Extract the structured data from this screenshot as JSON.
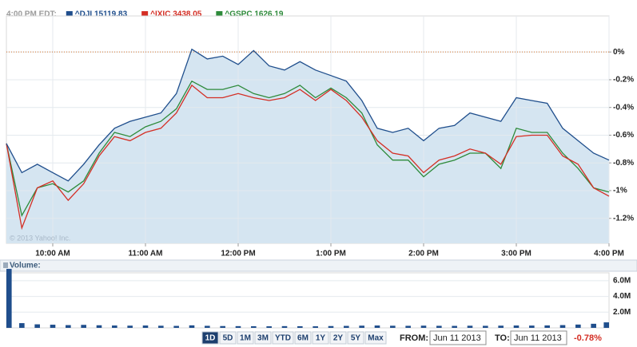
{
  "header": {
    "time_label": "4:00 PM EDT:"
  },
  "chart_data": [
    {
      "type": "line",
      "watermark": "© 2013 Yahoo! Inc.",
      "x": [
        "09:30",
        "09:40",
        "09:50",
        "10:00",
        "10:10",
        "10:20",
        "10:30",
        "10:40",
        "10:50",
        "11:00",
        "11:10",
        "11:20",
        "11:30",
        "11:40",
        "11:50",
        "12:00",
        "12:10",
        "12:20",
        "12:30",
        "12:40",
        "12:50",
        "13:00",
        "13:10",
        "13:20",
        "13:30",
        "13:40",
        "13:50",
        "14:00",
        "14:10",
        "14:20",
        "14:30",
        "14:40",
        "14:50",
        "15:00",
        "15:10",
        "15:20",
        "15:30",
        "15:40",
        "15:50",
        "16:00"
      ],
      "xlim": [
        "09:30",
        "16:00"
      ],
      "xticks": [
        {
          "value": "10:00",
          "label": "10:00 AM"
        },
        {
          "value": "11:00",
          "label": "11:00 AM"
        },
        {
          "value": "12:00",
          "label": "12:00 PM"
        },
        {
          "value": "13:00",
          "label": "1:00 PM"
        },
        {
          "value": "14:00",
          "label": "2:00 PM"
        },
        {
          "value": "15:00",
          "label": "3:00 PM"
        },
        {
          "value": "16:00",
          "label": "4:00 PM"
        }
      ],
      "ylim": [
        -1.38,
        0.26
      ],
      "yticks": [
        {
          "value": 0,
          "label": "0%"
        },
        {
          "value": -0.2,
          "label": "-0.2%"
        },
        {
          "value": -0.4,
          "label": "-0.4%"
        },
        {
          "value": -0.6,
          "label": "-0.6%"
        },
        {
          "value": -0.8,
          "label": "-0.8%"
        },
        {
          "value": -1,
          "label": "-1%"
        },
        {
          "value": -1.2,
          "label": "-1.2%"
        }
      ],
      "grid": true,
      "reference_line": 0,
      "series": [
        {
          "name": "^DJI 15119.83",
          "color": "#1f4e8c",
          "fill": "#d5e5f1",
          "values": [
            -0.66,
            -0.87,
            -0.81,
            -0.87,
            -0.93,
            -0.81,
            -0.67,
            -0.55,
            -0.5,
            -0.47,
            -0.44,
            -0.3,
            0.02,
            -0.05,
            -0.03,
            -0.09,
            0.01,
            -0.1,
            -0.13,
            -0.07,
            -0.13,
            -0.17,
            -0.21,
            -0.35,
            -0.55,
            -0.58,
            -0.55,
            -0.64,
            -0.55,
            -0.53,
            -0.44,
            -0.47,
            -0.5,
            -0.33,
            -0.35,
            -0.37,
            -0.55,
            -0.64,
            -0.73,
            -0.78
          ]
        },
        {
          "name": "^IXIC 3438.05",
          "color": "#d42e24",
          "values": [
            -0.66,
            -1.27,
            -0.98,
            -0.93,
            -1.07,
            -0.95,
            -0.75,
            -0.61,
            -0.64,
            -0.58,
            -0.55,
            -0.44,
            -0.24,
            -0.33,
            -0.33,
            -0.3,
            -0.33,
            -0.35,
            -0.33,
            -0.27,
            -0.35,
            -0.27,
            -0.35,
            -0.47,
            -0.64,
            -0.73,
            -0.75,
            -0.87,
            -0.78,
            -0.75,
            -0.7,
            -0.73,
            -0.81,
            -0.61,
            -0.6,
            -0.6,
            -0.75,
            -0.81,
            -0.98,
            -1.04
          ]
        },
        {
          "name": "^GSPC 1626.19",
          "color": "#2d8a3a",
          "values": [
            -0.66,
            -1.18,
            -0.98,
            -0.95,
            -1.01,
            -0.93,
            -0.73,
            -0.58,
            -0.61,
            -0.54,
            -0.5,
            -0.41,
            -0.21,
            -0.27,
            -0.27,
            -0.24,
            -0.3,
            -0.33,
            -0.3,
            -0.24,
            -0.33,
            -0.26,
            -0.33,
            -0.44,
            -0.67,
            -0.78,
            -0.78,
            -0.9,
            -0.81,
            -0.78,
            -0.73,
            -0.73,
            -0.84,
            -0.55,
            -0.58,
            -0.58,
            -0.73,
            -0.84,
            -0.98,
            -1.01
          ]
        }
      ]
    },
    {
      "type": "bar",
      "title": "Volume:",
      "color": "#1f4e8c",
      "x": [
        "09:30",
        "09:40",
        "09:50",
        "10:00",
        "10:10",
        "10:20",
        "10:30",
        "10:40",
        "10:50",
        "11:00",
        "11:10",
        "11:20",
        "11:30",
        "11:40",
        "11:50",
        "12:00",
        "12:10",
        "12:20",
        "12:30",
        "12:40",
        "12:50",
        "13:00",
        "13:10",
        "13:20",
        "13:30",
        "13:40",
        "13:50",
        "14:00",
        "14:10",
        "14:20",
        "14:30",
        "14:40",
        "14:50",
        "15:00",
        "15:10",
        "15:20",
        "15:30",
        "15:40",
        "15:50",
        "16:00"
      ],
      "xlim": [
        "09:30",
        "16:00"
      ],
      "values": [
        7500000,
        600000,
        450000,
        400000,
        350000,
        380000,
        330000,
        300000,
        280000,
        300000,
        270000,
        250000,
        320000,
        260000,
        230000,
        220000,
        210000,
        200000,
        220000,
        210000,
        200000,
        230000,
        250000,
        280000,
        300000,
        270000,
        260000,
        280000,
        260000,
        250000,
        270000,
        260000,
        280000,
        300000,
        290000,
        310000,
        350000,
        420000,
        520000,
        700000
      ],
      "ylim": [
        0,
        7000000
      ],
      "yticks": [
        {
          "value": 2000000,
          "label": "2.0M"
        },
        {
          "value": 4000000,
          "label": "4.0M"
        },
        {
          "value": 6000000,
          "label": "6.0M"
        }
      ]
    }
  ],
  "controls": {
    "ranges": [
      "1D",
      "5D",
      "1M",
      "3M",
      "YTD",
      "6M",
      "1Y",
      "2Y",
      "5Y",
      "Max"
    ],
    "active_range": "1D",
    "from_label": "FROM:",
    "from_value": "Jun 11 2013",
    "to_label": "TO:",
    "to_value": "Jun 11 2013",
    "change": "-0.78%"
  }
}
